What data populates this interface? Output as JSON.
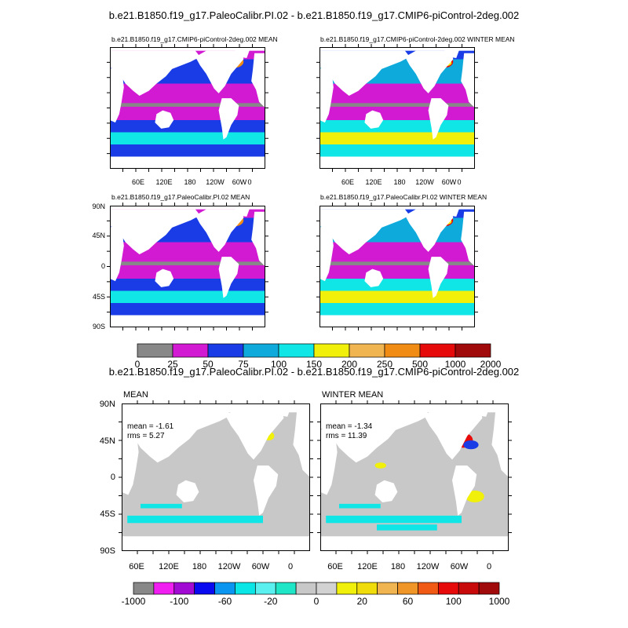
{
  "top_title": "b.e21.B1850.f19_g17.PaleoCalibr.PI.02 - b.e21.B1850.f19_g17.CMIP6-piControl-2deg.002",
  "bottom_title": "b.e21.B1850.f19_g17.PaleoCalibr.PI.02 - b.e21.B1850.f19_g17.CMIP6-piControl-2deg.002",
  "panels": [
    {
      "title": "b.e21.B1850.f19_g17.CMIP6-piControl-2deg.002 MEAN",
      "field": "mean"
    },
    {
      "title": "b.e21.B1850.f19_g17.CMIP6-piControl-2deg.002 WINTER MEAN",
      "field": "winter"
    },
    {
      "title": "b.e21.B1850.f19_g17.PaleoCalibr.PI.02 MEAN",
      "field": "mean"
    },
    {
      "title": "b.e21.B1850.f19_g17.PaleoCalibr.PI.02 WINTER MEAN",
      "field": "winter"
    }
  ],
  "diff_panels": [
    {
      "title": "MEAN",
      "mean_text": "mean = -1.61",
      "rms_text": "rms = 5.27"
    },
    {
      "title": "WINTER MEAN",
      "mean_text": "mean = -1.34",
      "rms_text": "rms = 11.39"
    }
  ],
  "lat_labels": [
    "90N",
    "45N",
    "0",
    "45S",
    "90S"
  ],
  "lon_labels": [
    "60E",
    "120E",
    "180",
    "120W",
    "60W",
    "0"
  ],
  "colorbar_top": {
    "labels": [
      "0",
      "25",
      "50",
      "75",
      "100",
      "150",
      "200",
      "250",
      "500",
      "1000",
      "2000"
    ],
    "colors": [
      "#888888",
      "#d21ad2",
      "#1a3ce6",
      "#0faadc",
      "#10e6e6",
      "#f0f00a",
      "#f0b450",
      "#f08c14",
      "#e60a0a",
      "#a00a0a"
    ]
  },
  "colorbar_bottom": {
    "labels": [
      "-1000",
      "-100",
      "-60",
      "-20",
      "0",
      "20",
      "60",
      "100",
      "1000"
    ],
    "colors": [
      "#888888",
      "#f01ef0",
      "#a00ad2",
      "#0a0af0",
      "#0a96f0",
      "#0ae6e6",
      "#5af0f0",
      "#20e6c8",
      "#c8c8c8",
      "#d2d2d2",
      "#f0f00a",
      "#f0dc0a",
      "#f0b450",
      "#f09628",
      "#f05a14",
      "#e60a0a",
      "#c80a0a",
      "#a00a0a"
    ]
  },
  "ocean_colors": {
    "magenta": "#d21ad2",
    "blue": "#1a3ce6",
    "lightblue": "#0faadc",
    "cyan": "#10e6e6",
    "yellow": "#f0f00a",
    "orange": "#f08c14",
    "red": "#e60a0a",
    "gray": "#888888",
    "diff_gray": "#c8c8c8"
  }
}
